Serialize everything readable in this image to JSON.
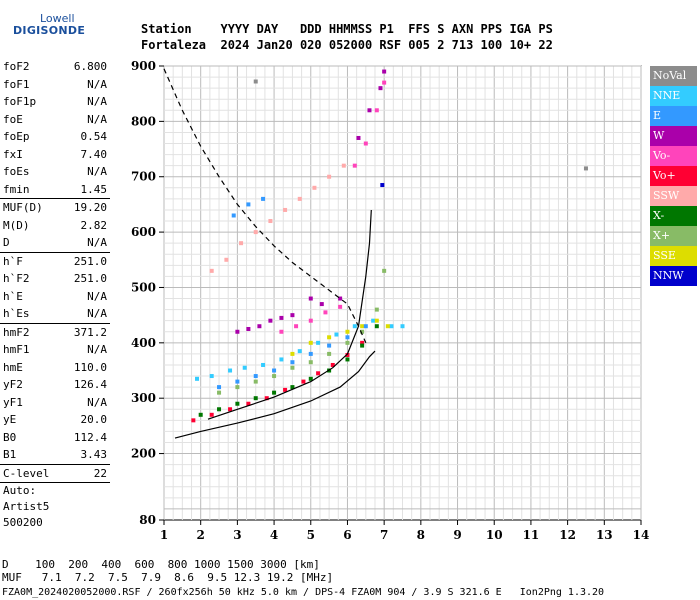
{
  "logo": {
    "top": "Lowell",
    "main": "DIGISONDE"
  },
  "header": {
    "line1": "Station    YYYY DAY   DDD HHMMSS P1  FFS S AXN PPS IGA PS",
    "line2": "Fortaleza  2024 Jan20 020 052000 RSF 005 2 713 100 10+ 22"
  },
  "params": [
    {
      "k": "foF2",
      "v": "6.800"
    },
    {
      "k": "foF1",
      "v": "N/A"
    },
    {
      "k": "foF1p",
      "v": "N/A"
    },
    {
      "k": "foE",
      "v": "N/A"
    },
    {
      "k": "foEp",
      "v": "0.54"
    },
    {
      "k": "fxI",
      "v": "7.40"
    },
    {
      "k": "foEs",
      "v": "N/A"
    },
    {
      "k": "fmin",
      "v": "1.45"
    },
    {
      "sep": true
    },
    {
      "k": "MUF(D)",
      "v": "19.20"
    },
    {
      "k": "M(D)",
      "v": "2.82"
    },
    {
      "k": "D",
      "v": "N/A"
    },
    {
      "sep": true
    },
    {
      "k": "h`F",
      "v": "251.0"
    },
    {
      "k": "h`F2",
      "v": "251.0"
    },
    {
      "k": "h`E",
      "v": "N/A"
    },
    {
      "k": "h`Es",
      "v": "N/A"
    },
    {
      "sep": true
    },
    {
      "k": "hmF2",
      "v": "371.2"
    },
    {
      "k": "hmF1",
      "v": "N/A"
    },
    {
      "k": "hmE",
      "v": "110.0"
    },
    {
      "k": "yF2",
      "v": "126.4"
    },
    {
      "k": "yF1",
      "v": "N/A"
    },
    {
      "k": "yE",
      "v": "20.0"
    },
    {
      "k": "B0",
      "v": "112.4"
    },
    {
      "k": "B1",
      "v": "3.43"
    },
    {
      "sep": true
    },
    {
      "k": "C-level",
      "v": "22"
    },
    {
      "sep": true
    },
    {
      "plain": "Auto:"
    },
    {
      "plain": "Artist5"
    },
    {
      "plain": "500200"
    }
  ],
  "bottom": {
    "line1": "D    100  200  400  600  800 1000 1500 3000 [km]",
    "line2": "MUF   7.1  7.2  7.5  7.9  8.6  9.5 12.3 19.2 [MHz]",
    "line3": "FZA0M_2024020052000.RSF / 260fx256h 50 kHz 5.0 km / DPS-4 FZA0M 904 / 3.9 S 321.6 E   Ion2Png 1.3.20"
  },
  "legend": [
    {
      "label": "NoVal",
      "color": "#8c8c8c"
    },
    {
      "label": "NNE",
      "color": "#33ccff"
    },
    {
      "label": "E",
      "color": "#3399ff"
    },
    {
      "label": "W",
      "color": "#aa00aa"
    },
    {
      "label": "Vo-",
      "color": "#ff44bb"
    },
    {
      "label": "Vo+",
      "color": "#ff0033"
    },
    {
      "label": "SSW",
      "color": "#ffaaaa"
    },
    {
      "label": "X-",
      "color": "#007700"
    },
    {
      "label": "X+",
      "color": "#88bb66"
    },
    {
      "label": "SSE",
      "color": "#dddd00"
    },
    {
      "label": "NNW",
      "color": "#0000cc"
    }
  ],
  "chart_data": {
    "type": "scatter",
    "xlabel": "",
    "ylabel": "",
    "xlim": [
      1,
      14
    ],
    "ylim": [
      80,
      900
    ],
    "x_ticks": [
      1,
      2,
      3,
      4,
      5,
      6,
      7,
      8,
      9,
      10,
      11,
      12,
      13,
      14
    ],
    "y_ticks": [
      80,
      200,
      300,
      400,
      500,
      600,
      700,
      800,
      900
    ],
    "grid": true,
    "series": [
      {
        "name": "Vo+",
        "color": "#ff0033",
        "points": [
          [
            1.8,
            260
          ],
          [
            2.3,
            270
          ],
          [
            2.8,
            280
          ],
          [
            3.3,
            290
          ],
          [
            3.8,
            300
          ],
          [
            4.3,
            315
          ],
          [
            4.8,
            330
          ],
          [
            5.2,
            345
          ],
          [
            5.6,
            360
          ],
          [
            6.0,
            378
          ],
          [
            6.4,
            400
          ]
        ]
      },
      {
        "name": "NNE",
        "color": "#33ccff",
        "points": [
          [
            1.9,
            335
          ],
          [
            2.3,
            340
          ],
          [
            2.8,
            350
          ],
          [
            3.2,
            355
          ],
          [
            3.7,
            360
          ],
          [
            4.2,
            370
          ],
          [
            4.7,
            385
          ],
          [
            5.2,
            400
          ],
          [
            5.7,
            415
          ],
          [
            6.2,
            430
          ],
          [
            6.7,
            440
          ],
          [
            7.2,
            430
          ],
          [
            7.5,
            430
          ]
        ]
      },
      {
        "name": "W",
        "color": "#aa00aa",
        "points": [
          [
            3.0,
            420
          ],
          [
            3.3,
            425
          ],
          [
            3.6,
            430
          ],
          [
            3.9,
            440
          ],
          [
            4.2,
            445
          ],
          [
            4.5,
            450
          ],
          [
            5.0,
            480
          ],
          [
            5.3,
            470
          ],
          [
            5.8,
            480
          ],
          [
            6.3,
            770
          ],
          [
            6.6,
            820
          ],
          [
            6.9,
            860
          ],
          [
            7.0,
            890
          ]
        ]
      },
      {
        "name": "X-",
        "color": "#007700",
        "points": [
          [
            2.0,
            270
          ],
          [
            2.5,
            280
          ],
          [
            3.0,
            290
          ],
          [
            3.5,
            300
          ],
          [
            4.0,
            310
          ],
          [
            4.5,
            320
          ],
          [
            5.0,
            335
          ],
          [
            5.5,
            350
          ],
          [
            6.0,
            370
          ],
          [
            6.4,
            395
          ],
          [
            6.8,
            430
          ]
        ]
      },
      {
        "name": "X+",
        "color": "#88bb66",
        "points": [
          [
            2.5,
            310
          ],
          [
            3.0,
            320
          ],
          [
            3.5,
            330
          ],
          [
            4.0,
            340
          ],
          [
            4.5,
            355
          ],
          [
            5.0,
            365
          ],
          [
            5.5,
            380
          ],
          [
            6.0,
            400
          ],
          [
            6.4,
            420
          ],
          [
            6.8,
            460
          ],
          [
            7.0,
            530
          ]
        ]
      },
      {
        "name": "SSE",
        "color": "#dddd00",
        "points": [
          [
            4.5,
            380
          ],
          [
            5.0,
            400
          ],
          [
            5.5,
            410
          ],
          [
            6.0,
            420
          ],
          [
            6.4,
            430
          ],
          [
            6.8,
            440
          ],
          [
            7.1,
            430
          ]
        ]
      },
      {
        "name": "Vo-",
        "color": "#ff44bb",
        "points": [
          [
            4.2,
            420
          ],
          [
            4.6,
            430
          ],
          [
            5.0,
            440
          ],
          [
            5.4,
            455
          ],
          [
            5.8,
            465
          ],
          [
            6.2,
            720
          ],
          [
            6.5,
            760
          ],
          [
            6.8,
            820
          ],
          [
            7.0,
            870
          ]
        ]
      },
      {
        "name": "SSW",
        "color": "#ffaaaa",
        "points": [
          [
            2.3,
            530
          ],
          [
            2.7,
            550
          ],
          [
            3.1,
            580
          ],
          [
            3.5,
            600
          ],
          [
            3.9,
            620
          ],
          [
            4.3,
            640
          ],
          [
            4.7,
            660
          ],
          [
            5.1,
            680
          ],
          [
            5.5,
            700
          ],
          [
            5.9,
            720
          ]
        ]
      },
      {
        "name": "E",
        "color": "#3399ff",
        "points": [
          [
            2.5,
            320
          ],
          [
            3.0,
            330
          ],
          [
            3.5,
            340
          ],
          [
            4.0,
            350
          ],
          [
            4.5,
            365
          ],
          [
            5.0,
            380
          ],
          [
            5.5,
            395
          ],
          [
            6.0,
            410
          ],
          [
            6.5,
            430
          ],
          [
            2.9,
            630
          ],
          [
            3.3,
            650
          ],
          [
            3.7,
            660
          ]
        ]
      },
      {
        "name": "NNW",
        "color": "#0000cc",
        "points": [
          [
            6.95,
            685
          ]
        ]
      },
      {
        "name": "NoVal",
        "color": "#8c8c8c",
        "points": [
          [
            3.5,
            872
          ],
          [
            12.5,
            715
          ]
        ]
      }
    ],
    "curves": [
      {
        "name": "profile-solid",
        "style": "solid",
        "points": [
          [
            1.3,
            228
          ],
          [
            2,
            240
          ],
          [
            3,
            255
          ],
          [
            4,
            272
          ],
          [
            5,
            295
          ],
          [
            5.8,
            320
          ],
          [
            6.3,
            348
          ],
          [
            6.6,
            375
          ],
          [
            6.75,
            385
          ]
        ]
      },
      {
        "name": "trace-solid",
        "style": "solid",
        "points": [
          [
            2.2,
            262
          ],
          [
            3,
            280
          ],
          [
            4,
            302
          ],
          [
            5,
            330
          ],
          [
            5.6,
            355
          ],
          [
            6.0,
            380
          ],
          [
            6.3,
            430
          ],
          [
            6.5,
            520
          ],
          [
            6.6,
            580
          ],
          [
            6.65,
            640
          ]
        ]
      },
      {
        "name": "profile-dashed",
        "style": "dashed",
        "points": [
          [
            1.0,
            895
          ],
          [
            1.5,
            820
          ],
          [
            2.0,
            755
          ],
          [
            2.5,
            700
          ],
          [
            3.0,
            650
          ],
          [
            3.5,
            610
          ],
          [
            4.0,
            575
          ],
          [
            4.5,
            545
          ],
          [
            5.0,
            520
          ],
          [
            5.5,
            495
          ],
          [
            6.0,
            470
          ],
          [
            6.3,
            430
          ],
          [
            6.5,
            400
          ]
        ]
      }
    ]
  }
}
